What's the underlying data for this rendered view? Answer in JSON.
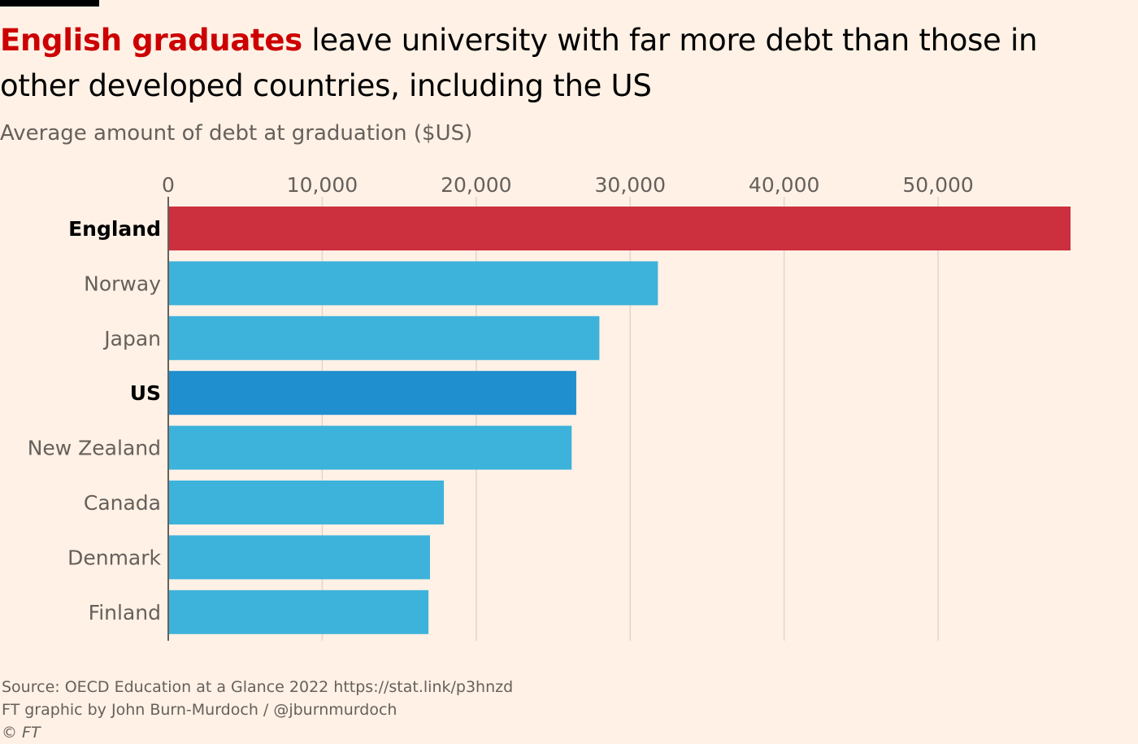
{
  "title": {
    "highlight": "English graduates",
    "rest": " leave university with far more debt than those in other developed countries, including the US"
  },
  "subtitle": "Average amount of debt at graduation ($US)",
  "chart_data": {
    "type": "bar",
    "orientation": "horizontal",
    "categories": [
      "England",
      "Norway",
      "Japan",
      "US",
      "New Zealand",
      "Canada",
      "Denmark",
      "Finland"
    ],
    "values": [
      58600,
      31800,
      28000,
      26500,
      26200,
      17900,
      17000,
      16900
    ],
    "highlighted": [
      "England",
      "US"
    ],
    "xlim": [
      0,
      58600
    ],
    "xticks": [
      0,
      10000,
      20000,
      30000,
      40000,
      50000
    ],
    "xtick_labels": [
      "0",
      "10,000",
      "20,000",
      "30,000",
      "40,000",
      "50,000"
    ],
    "grid": true,
    "colors": {
      "England": "#CC2F3E",
      "US": "#1F8FCF",
      "default": "#3DB2DB",
      "grid": "#E0D6CC",
      "axis": "#66605C",
      "tick_label": "#66605C",
      "category_label": "#66605C",
      "highlight_label": "#000000"
    }
  },
  "footer": {
    "source": "Source: OECD Education at a Glance 2022 https://stat.link/p3hnzd",
    "credit": "FT graphic by John Burn-Murdoch / @jburnmurdoch",
    "copyright": "© FT"
  }
}
